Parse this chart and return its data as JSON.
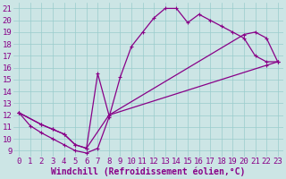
{
  "xlabel": "Windchill (Refroidissement éolien,°C)",
  "background_color": "#cce5e5",
  "line_color": "#880088",
  "xlim": [
    -0.5,
    23.5
  ],
  "ylim": [
    8.5,
    21.5
  ],
  "xticks": [
    0,
    1,
    2,
    3,
    4,
    5,
    6,
    7,
    8,
    9,
    10,
    11,
    12,
    13,
    14,
    15,
    16,
    17,
    18,
    19,
    20,
    21,
    22,
    23
  ],
  "yticks": [
    9,
    10,
    11,
    12,
    13,
    14,
    15,
    16,
    17,
    18,
    19,
    20,
    21
  ],
  "series1_x": [
    0,
    1,
    2,
    3,
    4,
    5,
    6,
    7,
    8,
    9,
    10,
    11,
    12,
    13,
    14,
    15,
    16,
    17,
    18,
    19,
    20,
    21,
    22,
    23
  ],
  "series1_y": [
    12.2,
    11.1,
    10.5,
    10.0,
    9.5,
    9.0,
    8.8,
    9.2,
    11.8,
    15.2,
    17.8,
    19.0,
    20.2,
    21.0,
    21.0,
    19.8,
    20.5,
    20.0,
    19.5,
    19.0,
    18.5,
    17.0,
    16.5,
    16.5
  ],
  "series2_x": [
    0,
    2,
    3,
    4,
    5,
    6,
    8,
    22,
    23
  ],
  "series2_y": [
    12.2,
    11.2,
    10.8,
    10.4,
    9.5,
    9.2,
    12.0,
    16.2,
    16.5
  ],
  "series3_x": [
    0,
    2,
    3,
    4,
    5,
    6,
    7,
    8,
    20,
    21,
    22,
    23
  ],
  "series3_y": [
    12.2,
    11.2,
    10.8,
    10.4,
    9.5,
    9.2,
    15.5,
    12.0,
    18.8,
    19.0,
    18.5,
    16.5
  ],
  "grid_color": "#99cccc",
  "font_color": "#880088",
  "tick_fontsize": 6.5,
  "xlabel_fontsize": 7.0
}
